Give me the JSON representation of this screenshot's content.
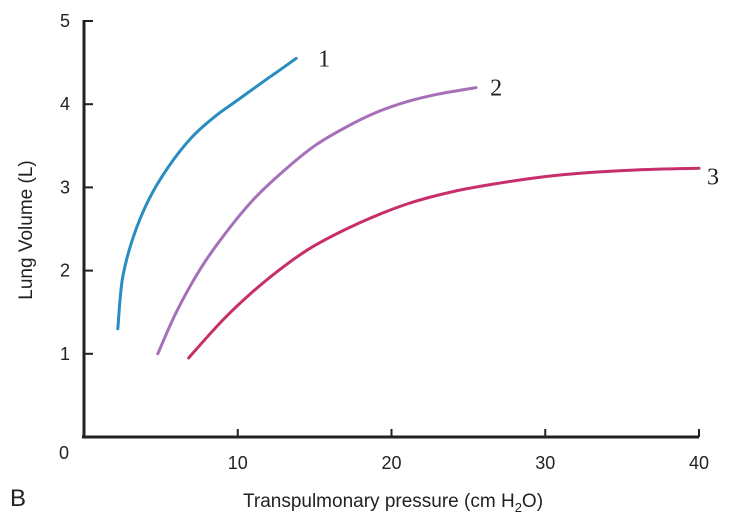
{
  "panel_label": "B",
  "chart_data": {
    "type": "line",
    "title": "",
    "xlabel_main": "Transpulmonary pressure (cm H",
    "xlabel_sub": "2",
    "xlabel_end": "O)",
    "ylabel": "Lung Volume (L)",
    "xlim": [
      0,
      40
    ],
    "ylim": [
      0,
      5
    ],
    "x_ticks": [
      10,
      20,
      30,
      40
    ],
    "y_ticks": [
      1,
      2,
      3,
      4,
      5
    ],
    "origin_label": "0",
    "grid": false,
    "series": [
      {
        "name": "1",
        "color": "#2a8dbf",
        "points": [
          [
            2.2,
            1.3
          ],
          [
            2.5,
            1.9
          ],
          [
            3.2,
            2.4
          ],
          [
            4.2,
            2.85
          ],
          [
            5.5,
            3.25
          ],
          [
            7.0,
            3.6
          ],
          [
            8.5,
            3.85
          ],
          [
            10.0,
            4.05
          ],
          [
            11.5,
            4.25
          ],
          [
            12.5,
            4.38
          ],
          [
            13.8,
            4.55
          ]
        ]
      },
      {
        "name": "2",
        "color": "#a670b8",
        "points": [
          [
            4.8,
            1.0
          ],
          [
            6.0,
            1.5
          ],
          [
            7.5,
            2.0
          ],
          [
            9.0,
            2.4
          ],
          [
            11.0,
            2.85
          ],
          [
            13.0,
            3.2
          ],
          [
            15.0,
            3.5
          ],
          [
            17.0,
            3.72
          ],
          [
            19.0,
            3.9
          ],
          [
            21.0,
            4.03
          ],
          [
            23.0,
            4.12
          ],
          [
            25.5,
            4.2
          ]
        ]
      },
      {
        "name": "3",
        "color": "#c72f6a",
        "points": [
          [
            6.8,
            0.95
          ],
          [
            9.0,
            1.4
          ],
          [
            11.0,
            1.75
          ],
          [
            13.0,
            2.05
          ],
          [
            15.0,
            2.3
          ],
          [
            18.0,
            2.58
          ],
          [
            21.0,
            2.8
          ],
          [
            24.0,
            2.95
          ],
          [
            27.0,
            3.05
          ],
          [
            30.0,
            3.13
          ],
          [
            33.0,
            3.18
          ],
          [
            36.0,
            3.21
          ],
          [
            40.0,
            3.23
          ]
        ]
      }
    ]
  }
}
